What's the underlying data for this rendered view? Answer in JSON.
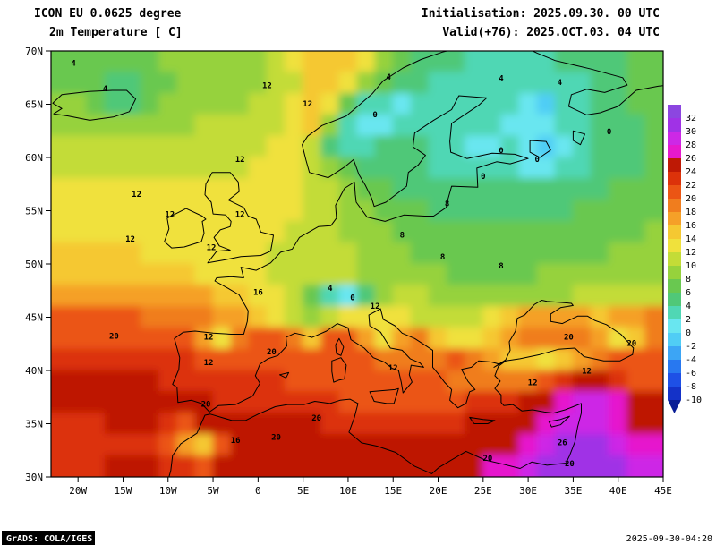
{
  "header": {
    "model": "ICON EU 0.0625 degree",
    "field": "2m Temperature [ C]",
    "init": "Initialisation: 2025.09.30. 00 UTC",
    "valid": "Valid(+76): 2025.OCT.03. 04 UTC"
  },
  "footer": {
    "credit": "GrADS: COLA/IGES",
    "timestamp": "2025-09-30-04:20"
  },
  "axes": {
    "lat_ticks": [
      "70N",
      "65N",
      "60N",
      "55N",
      "50N",
      "45N",
      "40N",
      "35N",
      "30N"
    ],
    "lat_values": [
      70,
      65,
      60,
      55,
      50,
      45,
      40,
      35,
      30
    ],
    "lon_ticks": [
      "20W",
      "15W",
      "10W",
      "5W",
      "0",
      "5E",
      "10E",
      "15E",
      "20E",
      "25E",
      "30E",
      "35E",
      "40E",
      "45E"
    ],
    "lon_values": [
      -20,
      -15,
      -10,
      -5,
      0,
      5,
      10,
      15,
      20,
      25,
      30,
      35,
      40,
      45
    ]
  },
  "colorbar": {
    "tick_labels": [
      "32",
      "30",
      "28",
      "26",
      "24",
      "22",
      "20",
      "18",
      "16",
      "14",
      "12",
      "10",
      "8",
      "6",
      "4",
      "2",
      "0",
      "-2",
      "-4",
      "-6",
      "-8",
      "-10"
    ]
  },
  "chart_data": {
    "type": "heatmap",
    "title": "ICON EU 2m Temperature [C], valid 2025.OCT.03 04 UTC",
    "lon_range": [
      -23,
      45
    ],
    "lat_range": [
      30,
      70
    ],
    "level_step": 2,
    "levels": [
      -10,
      -8,
      -6,
      -4,
      -2,
      0,
      2,
      4,
      6,
      8,
      10,
      12,
      14,
      16,
      18,
      20,
      22,
      24,
      26,
      28,
      30,
      32
    ],
    "palette": [
      "#0a1e96",
      "#1432c8",
      "#1e50e6",
      "#2878f0",
      "#3ca5f5",
      "#50cdf5",
      "#69e6f0",
      "#50d7b4",
      "#50c878",
      "#69c850",
      "#96d23c",
      "#c3dc37",
      "#f0e13c",
      "#f5c832",
      "#f5a028",
      "#f07d1e",
      "#eb5514",
      "#dc320a",
      "#be1905",
      "#e619cd",
      "#cd28e6",
      "#a032e6",
      "#8c46e0"
    ],
    "grid": {
      "lon_start": -22,
      "lon_step": 2,
      "lat_start": 69,
      "lat_step": -2,
      "values": [
        [
          6,
          6,
          6,
          7,
          7,
          7,
          8,
          8,
          8,
          8,
          9,
          9,
          10,
          12,
          14,
          15,
          14,
          12,
          9,
          7,
          5,
          4,
          4,
          3,
          3,
          3,
          3,
          3,
          4,
          4,
          5,
          5,
          6,
          6
        ],
        [
          7,
          7,
          6,
          4,
          4,
          6,
          7,
          8,
          8,
          8,
          9,
          9,
          10,
          11,
          14,
          15,
          12,
          9,
          7,
          5,
          4,
          3,
          2,
          2,
          2,
          2,
          3,
          2,
          2,
          3,
          4,
          5,
          6,
          6
        ],
        [
          8,
          8,
          7,
          5,
          5,
          7,
          8,
          8,
          9,
          9,
          9,
          10,
          10,
          12,
          15,
          13,
          6,
          3,
          2,
          1,
          2,
          2,
          2,
          3,
          3,
          2,
          1,
          -1,
          2,
          3,
          4,
          5,
          6,
          6
        ],
        [
          9,
          9,
          9,
          9,
          9,
          9,
          9,
          9,
          10,
          10,
          10,
          10,
          11,
          13,
          14,
          8,
          3,
          0,
          1,
          2,
          2,
          3,
          2,
          2,
          2,
          1,
          0,
          1,
          2,
          3,
          4,
          4,
          5,
          6
        ],
        [
          10,
          10,
          10,
          10,
          10,
          10,
          10,
          10,
          10,
          10,
          11,
          11,
          12,
          13,
          10,
          5,
          2,
          3,
          4,
          4,
          4,
          3,
          2,
          1,
          1,
          2,
          1,
          -1,
          1,
          3,
          4,
          4,
          5,
          6
        ],
        [
          11,
          11,
          11,
          11,
          11,
          11,
          11,
          11,
          11,
          11,
          11,
          12,
          12,
          12,
          10,
          8,
          6,
          5,
          5,
          4,
          4,
          3,
          2,
          2,
          2,
          2,
          1,
          1,
          2,
          3,
          4,
          5,
          5,
          6
        ],
        [
          12,
          12,
          12,
          12,
          12,
          12,
          12,
          12,
          12,
          12,
          12,
          12,
          12,
          12,
          11,
          10,
          8,
          7,
          6,
          5,
          4,
          4,
          4,
          4,
          4,
          4,
          4,
          4,
          4,
          5,
          5,
          6,
          6,
          7
        ],
        [
          12,
          12,
          12,
          12,
          12,
          12,
          12,
          12,
          12,
          12,
          12,
          12,
          12,
          12,
          11,
          10,
          9,
          8,
          7,
          6,
          6,
          5,
          5,
          5,
          5,
          5,
          5,
          5,
          5,
          6,
          6,
          6,
          7,
          7
        ],
        [
          13,
          13,
          13,
          13,
          13,
          12,
          12,
          12,
          12,
          12,
          12,
          12,
          12,
          11,
          11,
          10,
          9,
          9,
          8,
          7,
          6,
          6,
          6,
          6,
          6,
          6,
          6,
          6,
          6,
          6,
          7,
          7,
          7,
          8
        ],
        [
          14,
          14,
          14,
          14,
          14,
          13,
          13,
          12,
          12,
          12,
          12,
          12,
          11,
          11,
          11,
          10,
          10,
          9,
          8,
          8,
          7,
          7,
          7,
          6,
          6,
          6,
          6,
          7,
          7,
          7,
          7,
          8,
          8,
          8
        ],
        [
          15,
          15,
          15,
          15,
          15,
          15,
          14,
          14,
          13,
          13,
          12,
          12,
          11,
          11,
          10,
          10,
          10,
          9,
          9,
          8,
          8,
          8,
          7,
          7,
          7,
          7,
          7,
          8,
          8,
          8,
          8,
          9,
          9,
          9
        ],
        [
          17,
          17,
          17,
          17,
          16,
          16,
          16,
          16,
          16,
          15,
          14,
          13,
          12,
          10,
          6,
          2,
          0,
          4,
          9,
          10,
          10,
          9,
          8,
          8,
          8,
          8,
          9,
          9,
          9,
          10,
          10,
          10,
          10,
          10
        ],
        [
          20,
          20,
          20,
          20,
          20,
          19,
          19,
          18,
          18,
          17,
          16,
          14,
          12,
          10,
          8,
          10,
          12,
          12,
          12,
          12,
          11,
          10,
          10,
          11,
          12,
          14,
          16,
          16,
          16,
          16,
          15,
          16,
          17,
          18
        ],
        [
          21,
          21,
          21,
          21,
          21,
          21,
          20,
          20,
          16,
          12,
          18,
          20,
          20,
          18,
          14,
          20,
          20,
          16,
          12,
          16,
          18,
          14,
          12,
          13,
          14,
          16,
          18,
          18,
          18,
          18,
          16,
          12,
          14,
          18
        ],
        [
          22,
          22,
          22,
          23,
          23,
          23,
          22,
          22,
          21,
          20,
          21,
          21,
          21,
          21,
          20,
          20,
          20,
          20,
          19,
          18,
          18,
          19,
          20,
          18,
          16,
          14,
          14,
          12,
          14,
          16,
          18,
          20,
          20,
          20
        ],
        [
          24,
          24,
          24,
          24,
          24,
          24,
          23,
          22,
          22,
          22,
          22,
          22,
          22,
          21,
          21,
          21,
          20,
          20,
          20,
          20,
          20,
          20,
          19,
          18,
          18,
          18,
          18,
          20,
          22,
          24,
          24,
          22,
          20,
          20
        ],
        [
          25,
          25,
          25,
          25,
          24,
          24,
          24,
          24,
          24,
          23,
          23,
          23,
          22,
          22,
          22,
          22,
          21,
          21,
          21,
          21,
          21,
          21,
          21,
          22,
          22,
          23,
          24,
          25,
          27,
          28,
          28,
          27,
          25,
          24
        ],
        [
          22,
          22,
          23,
          24,
          24,
          24,
          22,
          20,
          24,
          25,
          25,
          25,
          25,
          24,
          24,
          23,
          23,
          23,
          22,
          22,
          22,
          23,
          23,
          24,
          24,
          25,
          25,
          27,
          29,
          29,
          29,
          27,
          25,
          25
        ],
        [
          22,
          22,
          23,
          23,
          23,
          22,
          20,
          16,
          14,
          20,
          24,
          25,
          25,
          25,
          25,
          25,
          25,
          25,
          24,
          24,
          24,
          25,
          25,
          25,
          25,
          25,
          27,
          29,
          30,
          30,
          30,
          29,
          27,
          27
        ],
        [
          22,
          23,
          23,
          24,
          24,
          24,
          23,
          22,
          20,
          24,
          25,
          25,
          25,
          25,
          25,
          25,
          25,
          25,
          25,
          25,
          25,
          25,
          25,
          25,
          26,
          27,
          28,
          30,
          31,
          31,
          30,
          30,
          28,
          28
        ]
      ]
    },
    "contour_labels": [
      {
        "v": "4",
        "lon": -20.5,
        "lat": 68.6
      },
      {
        "v": "4",
        "lon": -17.0,
        "lat": 66.2
      },
      {
        "v": "12",
        "lon": 1.0,
        "lat": 66.5
      },
      {
        "v": "12",
        "lon": 5.5,
        "lat": 64.8
      },
      {
        "v": "4",
        "lon": 14.5,
        "lat": 67.3
      },
      {
        "v": "4",
        "lon": 27.0,
        "lat": 67.2
      },
      {
        "v": "0",
        "lon": 13.0,
        "lat": 63.8
      },
      {
        "v": "4",
        "lon": 33.5,
        "lat": 66.8
      },
      {
        "v": "0",
        "lon": 39.0,
        "lat": 62.2
      },
      {
        "v": "0",
        "lon": 27.0,
        "lat": 60.4
      },
      {
        "v": "0",
        "lon": 31.0,
        "lat": 59.6
      },
      {
        "v": "0",
        "lon": 25.0,
        "lat": 58.0
      },
      {
        "v": "12",
        "lon": -13.5,
        "lat": 56.3
      },
      {
        "v": "12",
        "lon": -2.0,
        "lat": 59.6
      },
      {
        "v": "12",
        "lon": -9.8,
        "lat": 54.4
      },
      {
        "v": "12",
        "lon": -2.0,
        "lat": 54.4
      },
      {
        "v": "12",
        "lon": -14.2,
        "lat": 52.1
      },
      {
        "v": "12",
        "lon": -5.2,
        "lat": 51.3
      },
      {
        "v": "8",
        "lon": 16.0,
        "lat": 52.5
      },
      {
        "v": "8",
        "lon": 21.0,
        "lat": 55.4
      },
      {
        "v": "8",
        "lon": 20.5,
        "lat": 50.4
      },
      {
        "v": "8",
        "lon": 27.0,
        "lat": 49.6
      },
      {
        "v": "16",
        "lon": 0.0,
        "lat": 47.1
      },
      {
        "v": "4",
        "lon": 8.0,
        "lat": 47.5
      },
      {
        "v": "0",
        "lon": 10.5,
        "lat": 46.6
      },
      {
        "v": "12",
        "lon": 13.0,
        "lat": 45.8
      },
      {
        "v": "20",
        "lon": -16.0,
        "lat": 43.0
      },
      {
        "v": "12",
        "lon": -5.5,
        "lat": 42.9
      },
      {
        "v": "20",
        "lon": 1.5,
        "lat": 41.5
      },
      {
        "v": "12",
        "lon": -5.5,
        "lat": 40.5
      },
      {
        "v": "12",
        "lon": 15.0,
        "lat": 40.0
      },
      {
        "v": "20",
        "lon": 34.5,
        "lat": 42.9
      },
      {
        "v": "20",
        "lon": 41.5,
        "lat": 42.3
      },
      {
        "v": "12",
        "lon": 36.5,
        "lat": 39.7
      },
      {
        "v": "12",
        "lon": 30.5,
        "lat": 38.6
      },
      {
        "v": "20",
        "lon": -5.8,
        "lat": 36.6
      },
      {
        "v": "20",
        "lon": 6.5,
        "lat": 35.3
      },
      {
        "v": "16",
        "lon": -2.5,
        "lat": 33.2
      },
      {
        "v": "20",
        "lon": 2.0,
        "lat": 33.5
      },
      {
        "v": "26",
        "lon": 33.8,
        "lat": 33.0
      },
      {
        "v": "20",
        "lon": 25.5,
        "lat": 31.5
      },
      {
        "v": "20",
        "lon": 34.6,
        "lat": 31.0
      }
    ]
  }
}
